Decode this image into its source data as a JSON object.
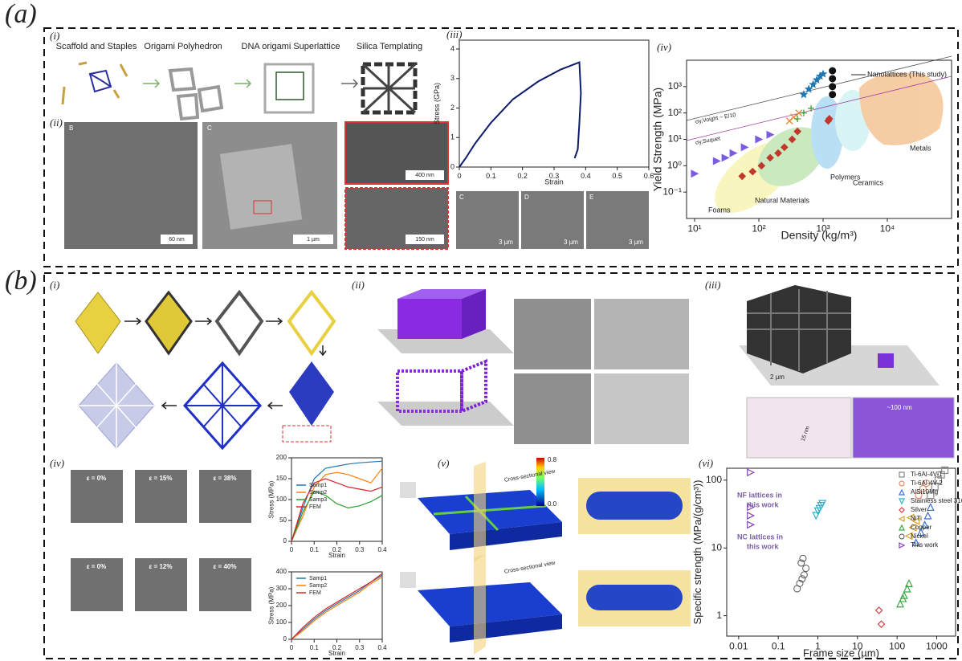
{
  "figure": {
    "a": {
      "label": "(a)",
      "i": {
        "label": "(i)",
        "steps": [
          "Scaffold and Staples",
          "Origami Polyhedron",
          "DNA origami Superlattice",
          "Silica Templating"
        ]
      },
      "ii": {
        "label": "(ii)",
        "images": [
          {
            "letter": "B",
            "scale": "60 nm"
          },
          {
            "letter": "C",
            "scale": "1 µm"
          },
          {
            "scale": "400 nm"
          },
          {
            "scale": "150 nm"
          }
        ]
      },
      "iii": {
        "label": "(iii)",
        "images": [
          {
            "letter": "C",
            "scale": "3 µm"
          },
          {
            "letter": "D",
            "scale": "3 µm"
          },
          {
            "letter": "E",
            "scale": "3 µm"
          }
        ]
      },
      "iv": {
        "label": "(iv)"
      }
    },
    "b": {
      "label": "(b)",
      "i": {
        "label": "(i)"
      },
      "ii": {
        "label": "(ii)"
      },
      "iii": {
        "label": "(iii)",
        "scale": "2 µm",
        "spacing": "~100 nm",
        "width": "15 nm"
      },
      "iv": {
        "label": "(iv)",
        "strains_top": [
          "ε = 0%",
          "ε = 15%",
          "ε = 38%"
        ],
        "strains_bottom": [
          "ε = 0%",
          "ε = 12%",
          "ε = 40%"
        ]
      },
      "v": {
        "label": "(v)",
        "view": "Cross-sectional view",
        "colorbar": [
          "0.8",
          "0.0"
        ]
      },
      "vi": {
        "label": "(vi)"
      }
    }
  },
  "chart_data": [
    {
      "type": "line",
      "x_label": "Strain",
      "y_label": "Stress (GPa)",
      "x": [
        0,
        0.02,
        0.05,
        0.1,
        0.17,
        0.25,
        0.32,
        0.38,
        0.385,
        0.38,
        0.375,
        0.365
      ],
      "values": [
        0,
        0.3,
        0.8,
        1.5,
        2.3,
        2.9,
        3.3,
        3.55,
        2.5,
        1.5,
        0.6,
        0.3
      ],
      "color": "#0d1b6e",
      "xlim": [
        0,
        0.6
      ],
      "ylim": [
        0,
        4.3
      ],
      "xticks": [
        0,
        0.1,
        0.2,
        0.3,
        0.4,
        0.5,
        0.6
      ],
      "yticks": [
        0,
        1,
        2,
        3,
        4
      ]
    },
    {
      "type": "scatter",
      "x_label": "Density (kg/m³)",
      "y_label": "Yield Strength (MPa)",
      "xscale": "log",
      "yscale": "log",
      "xlim": [
        7.5,
        100000
      ],
      "ylim": [
        0.01,
        10000
      ],
      "xticks": [
        {
          "value": 10,
          "label": "10¹"
        },
        {
          "value": 100,
          "label": "10²"
        },
        {
          "value": 1000,
          "label": "10³"
        },
        {
          "value": 10000,
          "label": "10⁴"
        }
      ],
      "yticks": [
        {
          "value": 0.1,
          "label": "10⁻¹"
        },
        {
          "value": 1,
          "label": "10⁰"
        },
        {
          "value": 10,
          "label": "10¹"
        },
        {
          "value": 100,
          "label": "10²"
        },
        {
          "value": 1000,
          "label": "10³"
        }
      ],
      "series": [
        {
          "color": "#7b5ce0",
          "marker": "triangle-right",
          "filled": true,
          "x": [
            10,
            22,
            30,
            40,
            60,
            100,
            150
          ],
          "values": [
            0.5,
            1.5,
            2,
            3,
            5,
            10,
            15
          ]
        },
        {
          "color": "#c0392b",
          "marker": "diamond",
          "filled": true,
          "x": [
            55,
            80,
            110,
            150,
            200,
            250,
            330,
            400,
            1200,
            1250
          ],
          "values": [
            0.4,
            0.6,
            1,
            2,
            3,
            5,
            10,
            20,
            50,
            60
          ]
        },
        {
          "color": "#e67e22",
          "marker": "x",
          "filled": false,
          "x": [
            300,
            350,
            420
          ],
          "values": [
            50,
            70,
            100
          ]
        },
        {
          "color": "#2ca02c",
          "marker": "plus",
          "filled": false,
          "x": [
            400,
            500,
            650
          ],
          "values": [
            60,
            100,
            150
          ]
        },
        {
          "color": "#1f77b4",
          "marker": "star",
          "filled": true,
          "x": [
            500,
            600,
            700,
            800,
            900,
            1000
          ],
          "values": [
            500,
            800,
            1200,
            1800,
            2500,
            3000
          ]
        },
        {
          "color": "#111111",
          "marker": "circle",
          "filled": true,
          "x": [
            1400,
            1400,
            1400,
            1400
          ],
          "values": [
            4000,
            2000,
            1000,
            500
          ]
        }
      ],
      "annotations": [
        "Nanolattices (This study)",
        "Metals",
        "Ceramics",
        "Polymers",
        "Natural Materials",
        "Foams",
        "σy,Voight ~ E/10",
        "σy,Suquet"
      ]
    },
    {
      "type": "line",
      "x_label": "Strain",
      "y_label": "Stress (MPa)",
      "xlim": [
        0,
        0.4
      ],
      "ylim": [
        0,
        200
      ],
      "xticks": [
        0,
        0.1,
        0.2,
        0.3,
        0.4
      ],
      "yticks": [
        0,
        50,
        100,
        150,
        200
      ],
      "legend": "center left",
      "series": [
        {
          "name": "Samp1",
          "color": "#1f77b4",
          "x": [
            0,
            0.05,
            0.1,
            0.15,
            0.2,
            0.25,
            0.3,
            0.35,
            0.4
          ],
          "values": [
            0,
            80,
            150,
            175,
            180,
            185,
            188,
            190,
            192
          ]
        },
        {
          "name": "Samp2",
          "color": "#ff7f0e",
          "x": [
            0,
            0.05,
            0.1,
            0.15,
            0.2,
            0.25,
            0.3,
            0.35,
            0.4
          ],
          "values": [
            0,
            60,
            130,
            160,
            165,
            160,
            150,
            140,
            175
          ]
        },
        {
          "name": "Samp3",
          "color": "#2ca02c",
          "x": [
            0,
            0.05,
            0.1,
            0.15,
            0.2,
            0.25,
            0.3,
            0.35,
            0.4
          ],
          "values": [
            0,
            70,
            120,
            110,
            90,
            80,
            85,
            95,
            110
          ]
        },
        {
          "name": "FEM",
          "color": "#d62728",
          "x": [
            0,
            0.05,
            0.1,
            0.15,
            0.2,
            0.25,
            0.3,
            0.35,
            0.4
          ],
          "values": [
            0,
            90,
            140,
            150,
            140,
            130,
            125,
            120,
            130
          ]
        }
      ]
    },
    {
      "type": "line",
      "x_label": "Strain",
      "y_label": "Stress (MPa)",
      "xlim": [
        0,
        0.4
      ],
      "ylim": [
        0,
        400
      ],
      "xticks": [
        0,
        0.1,
        0.2,
        0.3,
        0.4
      ],
      "yticks": [
        0,
        100,
        200,
        300,
        400
      ],
      "legend": "upper left",
      "series": [
        {
          "name": "Samp1",
          "color": "#1f77b4",
          "x": [
            0,
            0.05,
            0.1,
            0.15,
            0.2,
            0.25,
            0.3,
            0.35,
            0.4
          ],
          "values": [
            0,
            60,
            120,
            170,
            210,
            250,
            290,
            340,
            380
          ]
        },
        {
          "name": "Samp2",
          "color": "#ff7f0e",
          "x": [
            0,
            0.05,
            0.1,
            0.15,
            0.2,
            0.25,
            0.3,
            0.35,
            0.4
          ],
          "values": [
            0,
            50,
            110,
            160,
            200,
            240,
            280,
            330,
            370
          ]
        },
        {
          "name": "FEM",
          "color": "#d62728",
          "x": [
            0,
            0.05,
            0.1,
            0.15,
            0.2,
            0.25,
            0.3,
            0.35,
            0.4
          ],
          "values": [
            0,
            70,
            130,
            180,
            220,
            260,
            300,
            340,
            390
          ]
        }
      ]
    },
    {
      "type": "scatter",
      "x_label": "Frame size (µm)",
      "y_label": "Specific strength (MPa/(g/cm³))",
      "xscale": "log",
      "yscale": "log",
      "xlim": [
        0.005,
        3000
      ],
      "ylim": [
        0.5,
        150
      ],
      "xticks": [
        0.01,
        0.1,
        1,
        10,
        100,
        1000
      ],
      "yticks": [
        1,
        10,
        100
      ],
      "legend": "upper right",
      "series": [
        {
          "name": "Ti-6Al-4V-1",
          "color": "#888888",
          "marker": "square",
          "filled": false,
          "x": [
            700,
            900,
            1100,
            1300,
            1600
          ],
          "values": [
            60,
            80,
            100,
            120,
            140
          ]
        },
        {
          "name": "Ti-6Al-4V-2",
          "color": "#e8784a",
          "marker": "circle",
          "filled": false,
          "x": [
            350,
            450,
            550
          ],
          "values": [
            60,
            75,
            90
          ]
        },
        {
          "name": "AlSi10Mg",
          "color": "#3a6fd8",
          "marker": "triangle-up",
          "filled": false,
          "x": [
            300,
            400,
            500,
            600,
            700
          ],
          "values": [
            12,
            17,
            22,
            30,
            40
          ]
        },
        {
          "name": "Stainless steel 316L",
          "color": "#2bb0c8",
          "marker": "triangle-down",
          "filled": false,
          "x": [
            0.9,
            1.1,
            1.3,
            1.0,
            1.2
          ],
          "values": [
            30,
            38,
            45,
            35,
            42
          ]
        },
        {
          "name": "Silver",
          "color": "#d94040",
          "marker": "diamond",
          "filled": false,
          "x": [
            35,
            40
          ],
          "values": [
            1.2,
            0.75
          ]
        },
        {
          "name": "NiTi",
          "color": "#d9a030",
          "marker": "triangle-left",
          "filled": false,
          "x": [
            200,
            250,
            300,
            220
          ],
          "values": [
            15,
            20,
            25,
            28
          ]
        },
        {
          "name": "Copper",
          "color": "#3aa845",
          "marker": "triangle-up",
          "filled": false,
          "x": [
            120,
            150,
            180,
            140,
            200
          ],
          "values": [
            1.5,
            2,
            2.5,
            1.8,
            3
          ]
        },
        {
          "name": "Nickel",
          "color": "#555555",
          "marker": "circle",
          "filled": false,
          "x": [
            0.3,
            0.35,
            0.4,
            0.45,
            0.5,
            0.38,
            0.42
          ],
          "values": [
            2.5,
            3,
            3.5,
            4,
            5,
            6,
            7
          ]
        },
        {
          "name": "This work",
          "color": "#8a3fc0",
          "marker": "triangle-right",
          "filled": false,
          "x": [
            0.02,
            0.02,
            0.02,
            0.02
          ],
          "values": [
            130,
            40,
            30,
            22
          ]
        }
      ],
      "annotations": [
        "NF lattices in",
        "this work",
        "NC lattices in",
        "this work"
      ]
    }
  ]
}
